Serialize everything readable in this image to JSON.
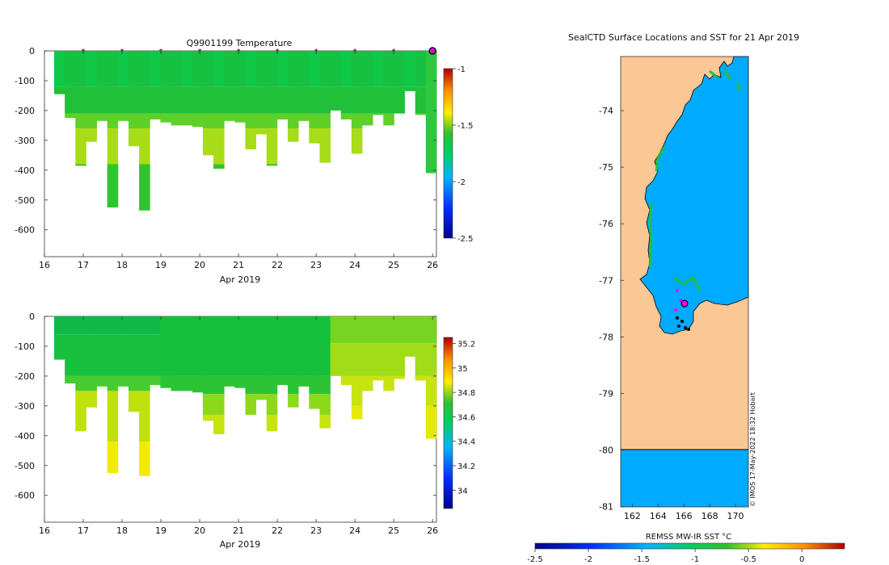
{
  "chart_data": [
    {
      "type": "heatmap",
      "title": "Q9901199  Temperature",
      "xlabel": "Apr 2019",
      "ylabel": "",
      "xlim": [
        16,
        26.1
      ],
      "ylim": [
        -690,
        0
      ],
      "x_ticks": [
        "16",
        "17",
        "18",
        "19",
        "20",
        "21",
        "22",
        "23",
        "24",
        "25",
        "26"
      ],
      "y_ticks": [
        "0",
        "-100",
        "-200",
        "-300",
        "-400",
        "-500",
        "-600"
      ],
      "colorbar": {
        "min": -2.5,
        "max": -1,
        "ticks": [
          "-1",
          "-1.5",
          "-2",
          "-2.5"
        ]
      },
      "profile_markers_x": [
        17,
        18,
        19,
        20,
        21,
        22,
        23,
        24,
        25
      ],
      "last_position_marker_x": 26,
      "profile_depths": [
        -145,
        -225,
        -385,
        -305,
        -235,
        -525,
        -235,
        -320,
        -535,
        -230,
        -240,
        -250,
        -250,
        -255,
        -350,
        -395,
        -235,
        -240,
        -330,
        -280,
        -385,
        -230,
        -305,
        -235,
        -310,
        -375,
        -200,
        -230,
        -345,
        -250,
        -215,
        -250,
        -210,
        -135,
        -215,
        -410
      ]
    },
    {
      "type": "heatmap",
      "title": "",
      "xlabel": "Apr 2019",
      "ylabel": "",
      "xlim": [
        16,
        26.1
      ],
      "ylim": [
        -690,
        0
      ],
      "x_ticks": [
        "16",
        "17",
        "18",
        "19",
        "20",
        "21",
        "22",
        "23",
        "24",
        "25",
        "26"
      ],
      "y_ticks": [
        "0",
        "-100",
        "-200",
        "-300",
        "-400",
        "-500",
        "-600"
      ],
      "colorbar": {
        "min": 33.85,
        "max": 35.25,
        "ticks": [
          "35.2",
          "35",
          "34.8",
          "34.6",
          "34.4",
          "34.2",
          "34"
        ]
      }
    },
    {
      "type": "heatmap",
      "title": "SealCTD Surface Locations and SST for 21 Apr 2019",
      "xlabel": "REMSS MW-IR SST °C",
      "x_ticks": [
        "162",
        "164",
        "166",
        "168",
        "170"
      ],
      "y_ticks": [
        "-74",
        "-75",
        "-76",
        "-77",
        "-78",
        "-79",
        "-80",
        "-81"
      ],
      "colorbar": {
        "min": -2.5,
        "max": 0.4,
        "ticks": [
          "-2.5",
          "-2",
          "-1.5",
          "-1",
          "-0.5",
          "0"
        ]
      },
      "credit": "© IMOS 17-May-2022 18:32 Hobart"
    }
  ]
}
